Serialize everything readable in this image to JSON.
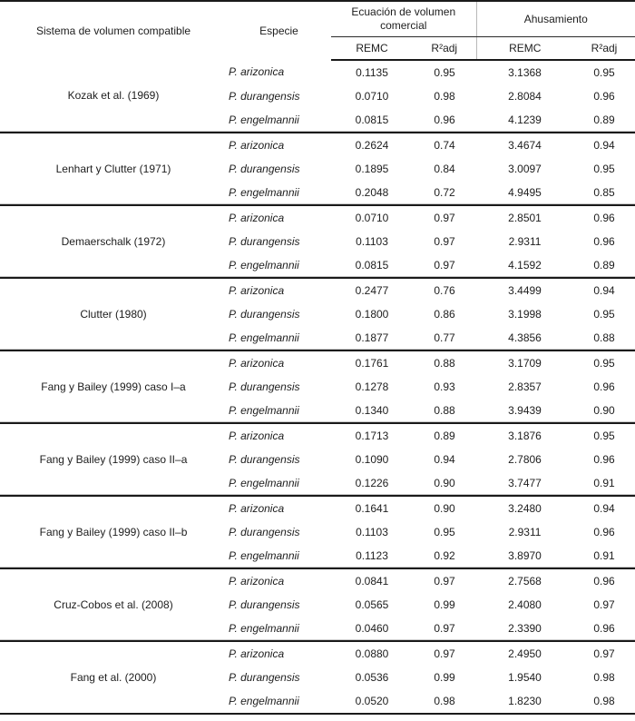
{
  "table": {
    "headers": {
      "sistema": "Sistema de volumen compatible",
      "especie": "Especie",
      "grupo_volumen": "Ecuación de volumen comercial",
      "grupo_ahusamiento": "Ahusamiento",
      "sub": [
        "REMC",
        "R²adj",
        "REMC",
        "R²adj"
      ]
    },
    "groups": [
      {
        "system": "Kozak et al. (1969)",
        "rows": [
          {
            "species": "P. arizonica",
            "vol_remc": "0.1135",
            "vol_r2adj": "0.95",
            "ahus_remc": "3.1368",
            "ahus_r2adj": "0.95"
          },
          {
            "species": "P. durangensis",
            "vol_remc": "0.0710",
            "vol_r2adj": "0.98",
            "ahus_remc": "2.8084",
            "ahus_r2adj": "0.96"
          },
          {
            "species": "P. engelmannii",
            "vol_remc": "0.0815",
            "vol_r2adj": "0.96",
            "ahus_remc": "4.1239",
            "ahus_r2adj": "0.89"
          }
        ]
      },
      {
        "system": "Lenhart y Clutter (1971)",
        "rows": [
          {
            "species": "P. arizonica",
            "vol_remc": "0.2624",
            "vol_r2adj": "0.74",
            "ahus_remc": "3.4674",
            "ahus_r2adj": "0.94"
          },
          {
            "species": "P. durangensis",
            "vol_remc": "0.1895",
            "vol_r2adj": "0.84",
            "ahus_remc": "3.0097",
            "ahus_r2adj": "0.95"
          },
          {
            "species": "P. engelmannii",
            "vol_remc": "0.2048",
            "vol_r2adj": "0.72",
            "ahus_remc": "4.9495",
            "ahus_r2adj": "0.85"
          }
        ]
      },
      {
        "system": "Demaerschalk (1972)",
        "rows": [
          {
            "species": "P. arizonica",
            "vol_remc": "0.0710",
            "vol_r2adj": "0.97",
            "ahus_remc": "2.8501",
            "ahus_r2adj": "0.96"
          },
          {
            "species": "P. durangensis",
            "vol_remc": "0.1103",
            "vol_r2adj": "0.97",
            "ahus_remc": "2.9311",
            "ahus_r2adj": "0.96"
          },
          {
            "species": "P. engelmannii",
            "vol_remc": "0.0815",
            "vol_r2adj": "0.97",
            "ahus_remc": "4.1592",
            "ahus_r2adj": "0.89"
          }
        ]
      },
      {
        "system": "Clutter (1980)",
        "rows": [
          {
            "species": "P. arizonica",
            "vol_remc": "0.2477",
            "vol_r2adj": "0.76",
            "ahus_remc": "3.4499",
            "ahus_r2adj": "0.94"
          },
          {
            "species": "P. durangensis",
            "vol_remc": "0.1800",
            "vol_r2adj": "0.86",
            "ahus_remc": "3.1998",
            "ahus_r2adj": "0.95"
          },
          {
            "species": "P. engelmannii",
            "vol_remc": "0.1877",
            "vol_r2adj": "0.77",
            "ahus_remc": "4.3856",
            "ahus_r2adj": "0.88"
          }
        ]
      },
      {
        "system": "Fang y Bailey (1999) caso I–a",
        "rows": [
          {
            "species": "P. arizonica",
            "vol_remc": "0.1761",
            "vol_r2adj": "0.88",
            "ahus_remc": "3.1709",
            "ahus_r2adj": "0.95"
          },
          {
            "species": "P. durangensis",
            "vol_remc": "0.1278",
            "vol_r2adj": "0.93",
            "ahus_remc": "2.8357",
            "ahus_r2adj": "0.96"
          },
          {
            "species": "P. engelmannii",
            "vol_remc": "0.1340",
            "vol_r2adj": "0.88",
            "ahus_remc": "3.9439",
            "ahus_r2adj": "0.90"
          }
        ]
      },
      {
        "system": "Fang y Bailey (1999) caso II–a",
        "rows": [
          {
            "species": "P. arizonica",
            "vol_remc": "0.1713",
            "vol_r2adj": "0.89",
            "ahus_remc": "3.1876",
            "ahus_r2adj": "0.95"
          },
          {
            "species": "P. durangensis",
            "vol_remc": "0.1090",
            "vol_r2adj": "0.94",
            "ahus_remc": "2.7806",
            "ahus_r2adj": "0.96"
          },
          {
            "species": "P. engelmannii",
            "vol_remc": "0.1226",
            "vol_r2adj": "0.90",
            "ahus_remc": "3.7477",
            "ahus_r2adj": "0.91"
          }
        ]
      },
      {
        "system": "Fang y Bailey (1999) caso II–b",
        "rows": [
          {
            "species": "P. arizonica",
            "vol_remc": "0.1641",
            "vol_r2adj": "0.90",
            "ahus_remc": "3.2480",
            "ahus_r2adj": "0.94"
          },
          {
            "species": "P. durangensis",
            "vol_remc": "0.1103",
            "vol_r2adj": "0.95",
            "ahus_remc": "2.9311",
            "ahus_r2adj": "0.96"
          },
          {
            "species": "P. engelmannii",
            "vol_remc": "0.1123",
            "vol_r2adj": "0.92",
            "ahus_remc": "3.8970",
            "ahus_r2adj": "0.91"
          }
        ]
      },
      {
        "system": "Cruz-Cobos et al. (2008)",
        "rows": [
          {
            "species": "P. arizonica",
            "vol_remc": "0.0841",
            "vol_r2adj": "0.97",
            "ahus_remc": "2.7568",
            "ahus_r2adj": "0.96"
          },
          {
            "species": "P. durangensis",
            "vol_remc": "0.0565",
            "vol_r2adj": "0.99",
            "ahus_remc": "2.4080",
            "ahus_r2adj": "0.97"
          },
          {
            "species": "P. engelmannii",
            "vol_remc": "0.0460",
            "vol_r2adj": "0.97",
            "ahus_remc": "2.3390",
            "ahus_r2adj": "0.96"
          }
        ]
      },
      {
        "system": "Fang et al. (2000)",
        "rows": [
          {
            "species": "P. arizonica",
            "vol_remc": "0.0880",
            "vol_r2adj": "0.97",
            "ahus_remc": "2.4950",
            "ahus_r2adj": "0.97"
          },
          {
            "species": "P. durangensis",
            "vol_remc": "0.0536",
            "vol_r2adj": "0.99",
            "ahus_remc": "1.9540",
            "ahus_r2adj": "0.98"
          },
          {
            "species": "P. engelmannii",
            "vol_remc": "0.0520",
            "vol_r2adj": "0.98",
            "ahus_remc": "1.8230",
            "ahus_r2adj": "0.98"
          }
        ]
      }
    ]
  }
}
